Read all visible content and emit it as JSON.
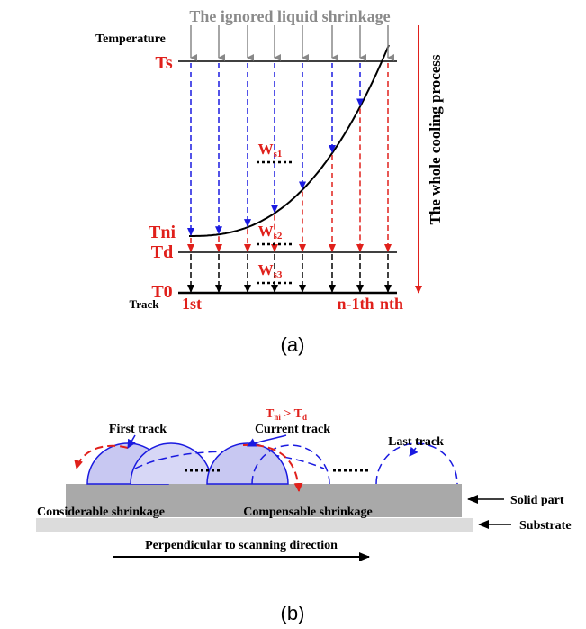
{
  "panel_a": {
    "top_label": "The ignored liquid shrinkage",
    "axis_label": "Temperature",
    "levels": {
      "ts": "Ts",
      "tni": "Tni",
      "td": "Td",
      "t0": "T0"
    },
    "widths": [
      {
        "main": "W",
        "sub": "s1"
      },
      {
        "main": "W",
        "sub": "s2"
      },
      {
        "main": "W",
        "sub": "s3"
      }
    ],
    "process_label": "The whole cooling process",
    "track_label": "Track",
    "tracks": {
      "first": "1st",
      "second_last": "n-1th",
      "last": "nth"
    },
    "caption": "(a)"
  },
  "panel_b": {
    "condition": {
      "main": "T",
      "sub1": "ni",
      "op": " > ",
      "main2": "T",
      "sub2": "d"
    },
    "first_track": "First track",
    "current_track": "Current track",
    "last_track": "Last track",
    "considerable": "Considerable shrinkage",
    "compensable": "Compensable shrinkage",
    "solid_part": "Solid part",
    "substrate": "Substrate",
    "direction": "Perpendicular to scanning direction",
    "caption": "(b)"
  }
}
